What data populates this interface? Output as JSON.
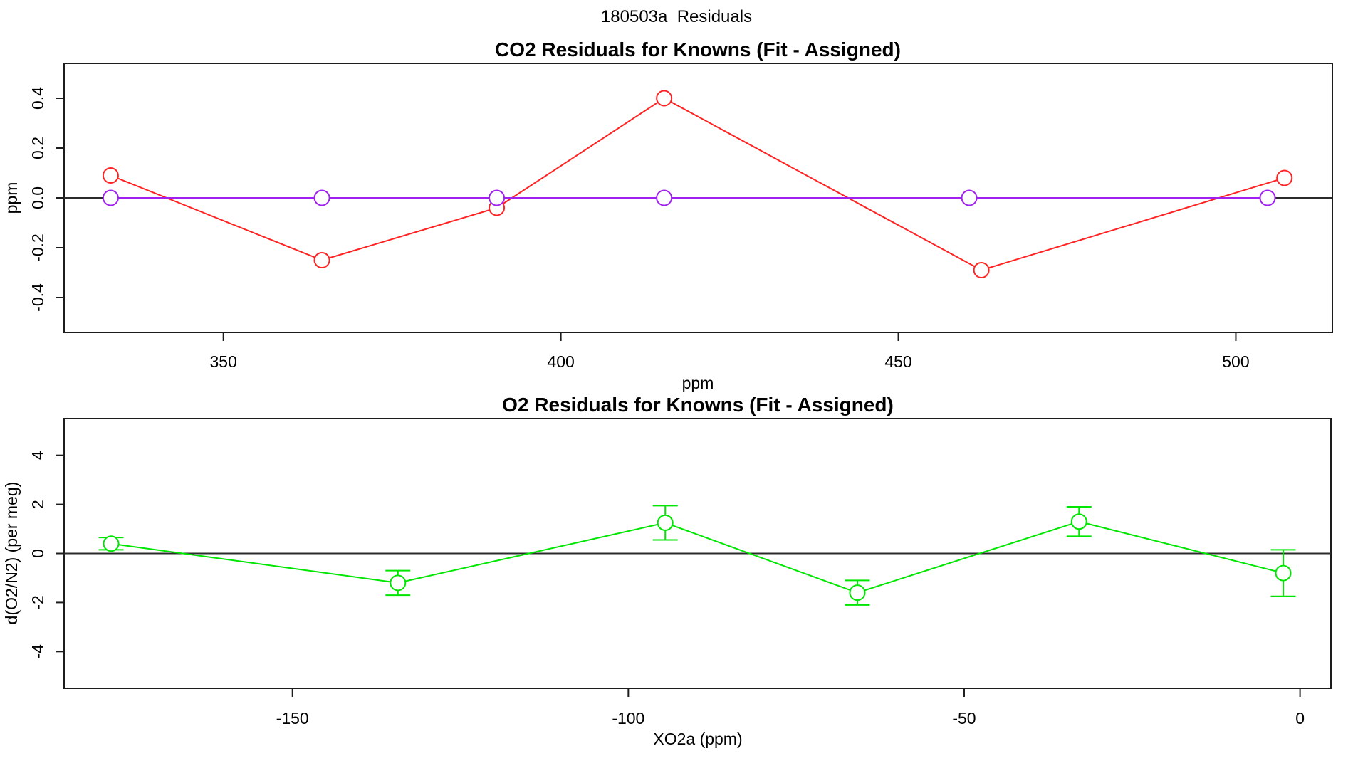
{
  "figure": {
    "title": "180503a  Residuals",
    "background": "#ffffff",
    "axis_color": "#1c1c1c",
    "text_color": "#000000"
  },
  "chart_data": [
    {
      "type": "line",
      "title": "CO2 Residuals for Knowns (Fit - Assigned)",
      "xlabel": "ppm",
      "ylabel": "ppm",
      "xlim": [
        326.4,
        514.3
      ],
      "ylim": [
        -0.54,
        0.54
      ],
      "xticks": [
        350,
        400,
        450,
        500
      ],
      "xtick_labels": [
        "350",
        "400",
        "450",
        "500"
      ],
      "yticks": [
        -0.4,
        -0.2,
        0,
        0.2,
        0.4
      ],
      "ytick_labels": [
        "-0.4",
        "-0.2",
        "0.0",
        "0.2",
        "0.4"
      ],
      "grid": false,
      "zero_line": true,
      "legend": "none",
      "series": [
        {
          "name": "co2-residual-fit-minus-assigned",
          "color": "#ff2222",
          "marker": "open-circle",
          "x": [
            333.3,
            364.6,
            390.5,
            415.3,
            462.3,
            507.2
          ],
          "y": [
            0.09,
            -0.25,
            -0.04,
            0.4,
            -0.29,
            0.08
          ]
        },
        {
          "name": "co2-zero-reference-series",
          "color": "#a020f0",
          "marker": "open-circle",
          "x": [
            333.3,
            364.6,
            390.5,
            415.3,
            460.5,
            504.7
          ],
          "y": [
            0.0,
            0.0,
            0.0,
            0.0,
            0.0,
            0.0
          ]
        }
      ]
    },
    {
      "type": "line",
      "title": "O2 Residuals for Knowns (Fit - Assigned)",
      "xlabel": "XO2a (ppm)",
      "ylabel": "d(O2/N2) (per meg)",
      "xlim": [
        -184,
        4.6
      ],
      "ylim": [
        -5.5,
        5.5
      ],
      "xticks": [
        -150,
        -100,
        -50,
        0
      ],
      "xtick_labels": [
        "-150",
        "-100",
        "-50",
        "0"
      ],
      "yticks": [
        -4,
        -2,
        0,
        2,
        4
      ],
      "ytick_labels": [
        "-4",
        "-2",
        "0",
        "2",
        "4"
      ],
      "grid": false,
      "zero_line": true,
      "legend": "none",
      "series": [
        {
          "name": "o2-residual-fit-minus-assigned",
          "color": "#00e600",
          "marker": "open-circle",
          "x": [
            -177.0,
            -134.3,
            -94.5,
            -65.9,
            -32.9,
            -2.5
          ],
          "y": [
            0.4,
            -1.2,
            1.25,
            -1.6,
            1.3,
            -0.8
          ],
          "error": [
            0.25,
            0.5,
            0.7,
            0.5,
            0.6,
            0.95
          ]
        }
      ]
    }
  ]
}
